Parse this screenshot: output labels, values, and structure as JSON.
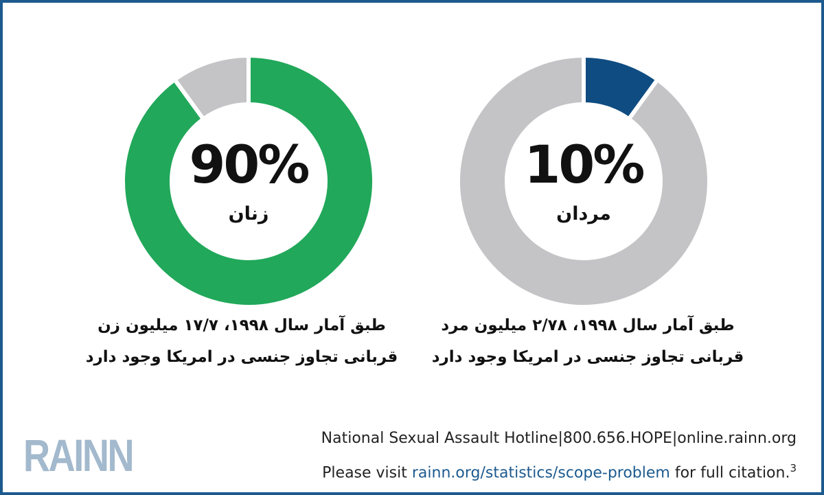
{
  "chart_data": [
    {
      "type": "pie",
      "donut": true,
      "center_value": "90%",
      "center_label": "زنان",
      "slices": [
        {
          "label": "زنان",
          "value": 90,
          "color": "#21a85a"
        },
        {
          "label": "",
          "value": 10,
          "color": "#c4c4c6"
        }
      ],
      "caption": [
        "طبق آمار سال ۱۹۹۸، ۱۷/۷ میلیون زن",
        "قربانی تجاوز جنسی در امریکا وجود دارد"
      ]
    },
    {
      "type": "pie",
      "donut": true,
      "center_value": "10%",
      "center_label": "مردان",
      "slices": [
        {
          "label": "مردان",
          "value": 10,
          "color": "#0f4c81"
        },
        {
          "label": "",
          "value": 90,
          "color": "#c4c4c6"
        }
      ],
      "caption": [
        "طبق آمار سال ۱۹۹۸، ۲/۷۸ میلیون مرد",
        "قربانی تجاوز جنسی در امریکا وجود دارد"
      ]
    }
  ],
  "footer": {
    "logo": "RAINN",
    "hotline_label": "National Sexual Assault Hotline",
    "phone": "800.656.HOPE",
    "site": "online.rainn.org",
    "visit_prefix": "Please visit ",
    "visit_link": "rainn.org/statistics/scope-problem",
    "visit_suffix": " for full citation.",
    "footnote": "3"
  }
}
